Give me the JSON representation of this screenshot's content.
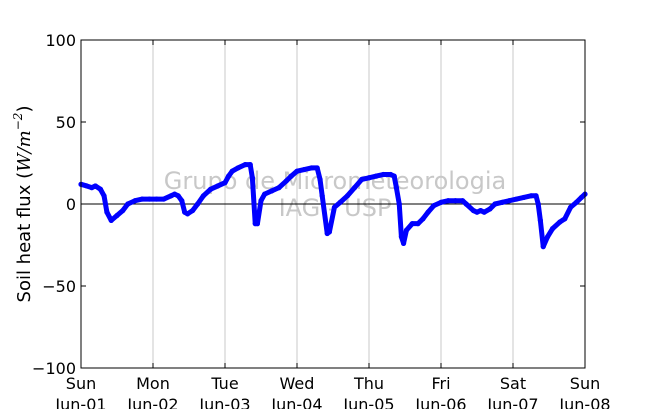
{
  "chart_data": {
    "type": "line",
    "ylabel_prefix": "Soil heat flux (",
    "ylabel_unit": "W/m",
    "ylabel_exp": "−2",
    "ylabel_suffix": ")",
    "ylim": [
      -100,
      100
    ],
    "yticks": [
      {
        "value": 100,
        "label": "100"
      },
      {
        "value": 50,
        "label": "50"
      },
      {
        "value": 0,
        "label": "0"
      },
      {
        "value": -50,
        "label": "−50"
      },
      {
        "value": -100,
        "label": "−100"
      }
    ],
    "xlim": [
      "Jun-01",
      "Jun-08"
    ],
    "xticks": [
      {
        "day": 0,
        "line1": "Sun",
        "line2": "Jun-01"
      },
      {
        "day": 1,
        "line1": "Mon",
        "line2": "Jun-02"
      },
      {
        "day": 2,
        "line1": "Tue",
        "line2": "Jun-03"
      },
      {
        "day": 3,
        "line1": "Wed",
        "line2": "Jun-04"
      },
      {
        "day": 4,
        "line1": "Thu",
        "line2": "Jun-05"
      },
      {
        "day": 5,
        "line1": "Fri",
        "line2": "Jun-06"
      },
      {
        "day": 6,
        "line1": "Sat",
        "line2": "Jun-07"
      },
      {
        "day": 7,
        "line1": "Sun",
        "line2": "Jun-08"
      }
    ],
    "grid": "vertical",
    "zero_line": true,
    "series": [
      {
        "color": "#0000ff",
        "points": [
          [
            0.0,
            12
          ],
          [
            0.08,
            11
          ],
          [
            0.15,
            10
          ],
          [
            0.2,
            11
          ],
          [
            0.27,
            9
          ],
          [
            0.32,
            5
          ],
          [
            0.36,
            -5
          ],
          [
            0.42,
            -10
          ],
          [
            0.5,
            -7
          ],
          [
            0.58,
            -4
          ],
          [
            0.65,
            0
          ],
          [
            0.75,
            2
          ],
          [
            0.85,
            3
          ],
          [
            0.95,
            3
          ],
          [
            1.05,
            3
          ],
          [
            1.15,
            3
          ],
          [
            1.25,
            5
          ],
          [
            1.3,
            6
          ],
          [
            1.35,
            5
          ],
          [
            1.4,
            2
          ],
          [
            1.44,
            -5
          ],
          [
            1.48,
            -6
          ],
          [
            1.55,
            -4
          ],
          [
            1.62,
            0
          ],
          [
            1.7,
            5
          ],
          [
            1.8,
            9
          ],
          [
            1.9,
            11
          ],
          [
            2.0,
            13
          ],
          [
            2.05,
            17
          ],
          [
            2.1,
            20
          ],
          [
            2.18,
            22
          ],
          [
            2.28,
            24
          ],
          [
            2.35,
            24
          ],
          [
            2.38,
            16
          ],
          [
            2.42,
            -12
          ],
          [
            2.45,
            -12
          ],
          [
            2.5,
            2
          ],
          [
            2.55,
            6
          ],
          [
            2.65,
            8
          ],
          [
            2.75,
            10
          ],
          [
            2.85,
            14
          ],
          [
            2.92,
            17
          ],
          [
            3.0,
            20
          ],
          [
            3.1,
            21
          ],
          [
            3.2,
            22
          ],
          [
            3.28,
            22
          ],
          [
            3.32,
            15
          ],
          [
            3.35,
            5
          ],
          [
            3.42,
            -18
          ],
          [
            3.45,
            -17
          ],
          [
            3.52,
            -2
          ],
          [
            3.6,
            1
          ],
          [
            3.7,
            5
          ],
          [
            3.8,
            10
          ],
          [
            3.9,
            15
          ],
          [
            4.0,
            16
          ],
          [
            4.1,
            17
          ],
          [
            4.2,
            18
          ],
          [
            4.3,
            18
          ],
          [
            4.35,
            17
          ],
          [
            4.38,
            10
          ],
          [
            4.42,
            0
          ],
          [
            4.45,
            -20
          ],
          [
            4.48,
            -24
          ],
          [
            4.52,
            -16
          ],
          [
            4.6,
            -12
          ],
          [
            4.68,
            -12
          ],
          [
            4.75,
            -9
          ],
          [
            4.82,
            -5
          ],
          [
            4.9,
            -1
          ],
          [
            5.0,
            1
          ],
          [
            5.1,
            2
          ],
          [
            5.2,
            2
          ],
          [
            5.3,
            2
          ],
          [
            5.35,
            0
          ],
          [
            5.45,
            -4
          ],
          [
            5.5,
            -5
          ],
          [
            5.55,
            -4
          ],
          [
            5.6,
            -5
          ],
          [
            5.68,
            -3
          ],
          [
            5.75,
            0
          ],
          [
            5.85,
            1
          ],
          [
            5.95,
            2
          ],
          [
            6.05,
            3
          ],
          [
            6.15,
            4
          ],
          [
            6.25,
            5
          ],
          [
            6.32,
            5
          ],
          [
            6.35,
            0
          ],
          [
            6.38,
            -10
          ],
          [
            6.42,
            -26
          ],
          [
            6.48,
            -20
          ],
          [
            6.55,
            -15
          ],
          [
            6.65,
            -11
          ],
          [
            6.72,
            -9
          ],
          [
            6.8,
            -2
          ],
          [
            6.88,
            1
          ],
          [
            6.95,
            4
          ],
          [
            7.0,
            6
          ]
        ]
      }
    ]
  },
  "watermark": {
    "line1": "Grupo de Micrometeorologia",
    "line2": "IAG - USP"
  }
}
